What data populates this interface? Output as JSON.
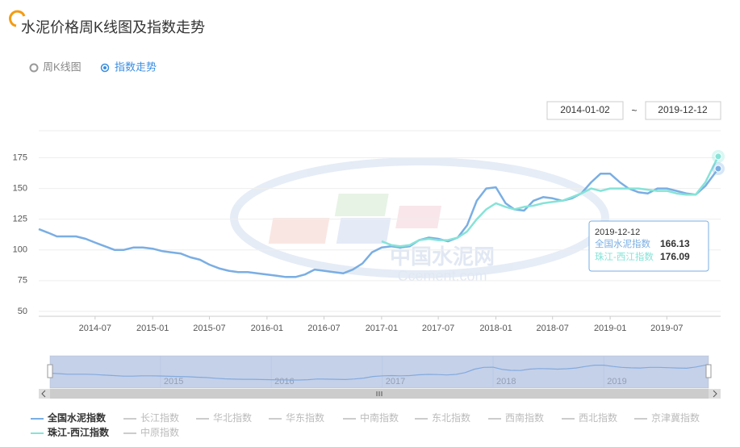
{
  "page": {
    "title": "水泥价格周K线图及指数走势",
    "tabs": [
      "周K线图",
      "指数走势"
    ],
    "selected_tab": 1,
    "range_separator": "~"
  },
  "chart_data": {
    "type": "line",
    "x": [
      "2014-01-02",
      "2014-02",
      "2014-03",
      "2014-04",
      "2014-05",
      "2014-06",
      "2014-07",
      "2014-08",
      "2014-09",
      "2014-10",
      "2014-11",
      "2014-12",
      "2015-01",
      "2015-02",
      "2015-03",
      "2015-04",
      "2015-05",
      "2015-06",
      "2015-07",
      "2015-08",
      "2015-09",
      "2015-10",
      "2015-11",
      "2015-12",
      "2016-01",
      "2016-02",
      "2016-03",
      "2016-04",
      "2016-05",
      "2016-06",
      "2016-07",
      "2016-08",
      "2016-09",
      "2016-10",
      "2016-11",
      "2016-12",
      "2017-01",
      "2017-02",
      "2017-03",
      "2017-04",
      "2017-05",
      "2017-06",
      "2017-07",
      "2017-08",
      "2017-09",
      "2017-10",
      "2017-11",
      "2017-12",
      "2018-01",
      "2018-02",
      "2018-03",
      "2018-04",
      "2018-05",
      "2018-06",
      "2018-07",
      "2018-08",
      "2018-09",
      "2018-10",
      "2018-11",
      "2018-12",
      "2019-01",
      "2019-02",
      "2019-03",
      "2019-04",
      "2019-05",
      "2019-06",
      "2019-07",
      "2019-08",
      "2019-09",
      "2019-10",
      "2019-11",
      "2019-12-12"
    ],
    "series": [
      {
        "name": "全国水泥指数",
        "color": "#7aaee3",
        "values": [
          117,
          114,
          111,
          111,
          111,
          109,
          106,
          103,
          100,
          100,
          102,
          102,
          101,
          99,
          98,
          97,
          94,
          92,
          88,
          85,
          83,
          82,
          82,
          81,
          80,
          79,
          78,
          78,
          80,
          84,
          83,
          82,
          81,
          84,
          89,
          98,
          102,
          103,
          102,
          103,
          108,
          110,
          109,
          107,
          110,
          120,
          140,
          150,
          151,
          138,
          133,
          132,
          140,
          143,
          142,
          140,
          142,
          146,
          155,
          162,
          162,
          155,
          150,
          147,
          146,
          150,
          150,
          148,
          146,
          145,
          152,
          166.13
        ]
      },
      {
        "name": "珠江-西江指数",
        "color": "#86e3d8",
        "values": [
          null,
          null,
          null,
          null,
          null,
          null,
          null,
          null,
          null,
          null,
          null,
          null,
          null,
          null,
          null,
          null,
          null,
          null,
          null,
          null,
          null,
          null,
          null,
          null,
          null,
          null,
          null,
          null,
          null,
          null,
          null,
          null,
          null,
          null,
          null,
          null,
          107,
          104,
          103,
          104,
          108,
          109,
          108,
          108,
          110,
          115,
          125,
          133,
          138,
          135,
          133,
          135,
          136,
          138,
          139,
          140,
          143,
          146,
          150,
          148,
          150,
          150,
          150,
          150,
          149,
          148,
          148,
          146,
          145,
          145,
          155,
          176.09
        ]
      }
    ],
    "inactive_series": [
      "长江指数",
      "华北指数",
      "华东指数",
      "中南指数",
      "东北指数",
      "西南指数",
      "西北指数",
      "京津冀指数",
      "中原指数"
    ],
    "xlim": [
      "2014-01-02",
      "2019-12-12"
    ],
    "xticks": [
      "2014-07",
      "2015-01",
      "2015-07",
      "2016-01",
      "2016-07",
      "2017-01",
      "2017-07",
      "2018-01",
      "2018-07",
      "2019-01",
      "2019-07"
    ],
    "ylim": [
      46,
      197
    ],
    "yticks": [
      50,
      75,
      100,
      125,
      150,
      175
    ],
    "grid": true,
    "zoom_labels": [
      "2015",
      "2016",
      "2017",
      "2018",
      "2019"
    ],
    "watermark": {
      "cn": "中国水泥网",
      "en": "Ccement.com"
    }
  }
}
